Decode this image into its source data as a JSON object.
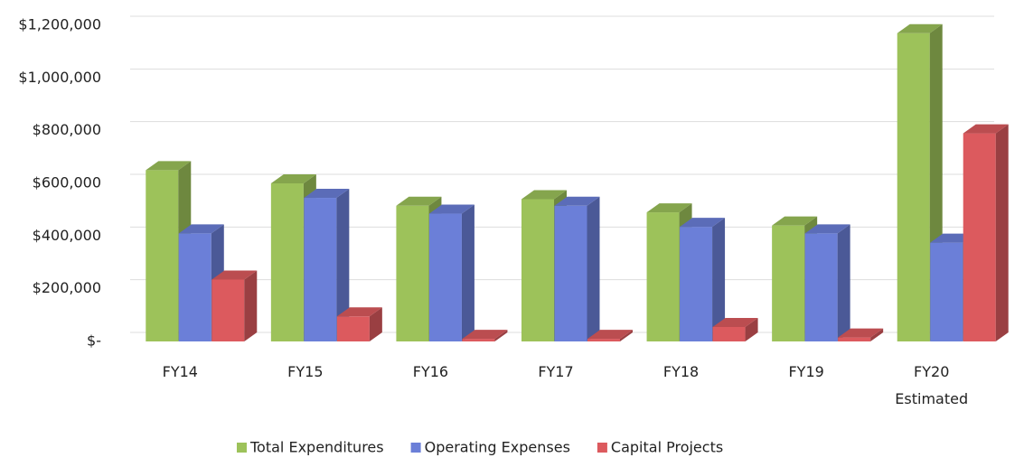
{
  "chart_data": {
    "type": "bar3d",
    "categories": [
      "FY14",
      "FY15",
      "FY16",
      "FY17",
      "FY18",
      "FY19",
      "FY20 Estimated"
    ],
    "series": [
      {
        "name": "Total Expenditures",
        "color": "#9dc25a",
        "values": [
          650000,
          600000,
          515000,
          540000,
          490000,
          440000,
          1170000
        ]
      },
      {
        "name": "Operating Expenses",
        "color": "#6b7fd8",
        "values": [
          410000,
          545000,
          485000,
          515000,
          435000,
          410000,
          375000
        ]
      },
      {
        "name": "Capital Projects",
        "color": "#dc5a5e",
        "values": [
          235000,
          95000,
          10000,
          10000,
          55000,
          15000,
          790000
        ]
      }
    ],
    "ylim": [
      0,
      1200000
    ],
    "yticks": [
      {
        "value": 0,
        "label": "$-"
      },
      {
        "value": 200000,
        "label": "$200,000"
      },
      {
        "value": 400000,
        "label": "$400,000"
      },
      {
        "value": 600000,
        "label": "$600,000"
      },
      {
        "value": 800000,
        "label": "$800,000"
      },
      {
        "value": 1000000,
        "label": "$1,000,000"
      },
      {
        "value": 1200000,
        "label": "$1,200,000"
      }
    ],
    "grid": true,
    "legend": "bottom"
  }
}
